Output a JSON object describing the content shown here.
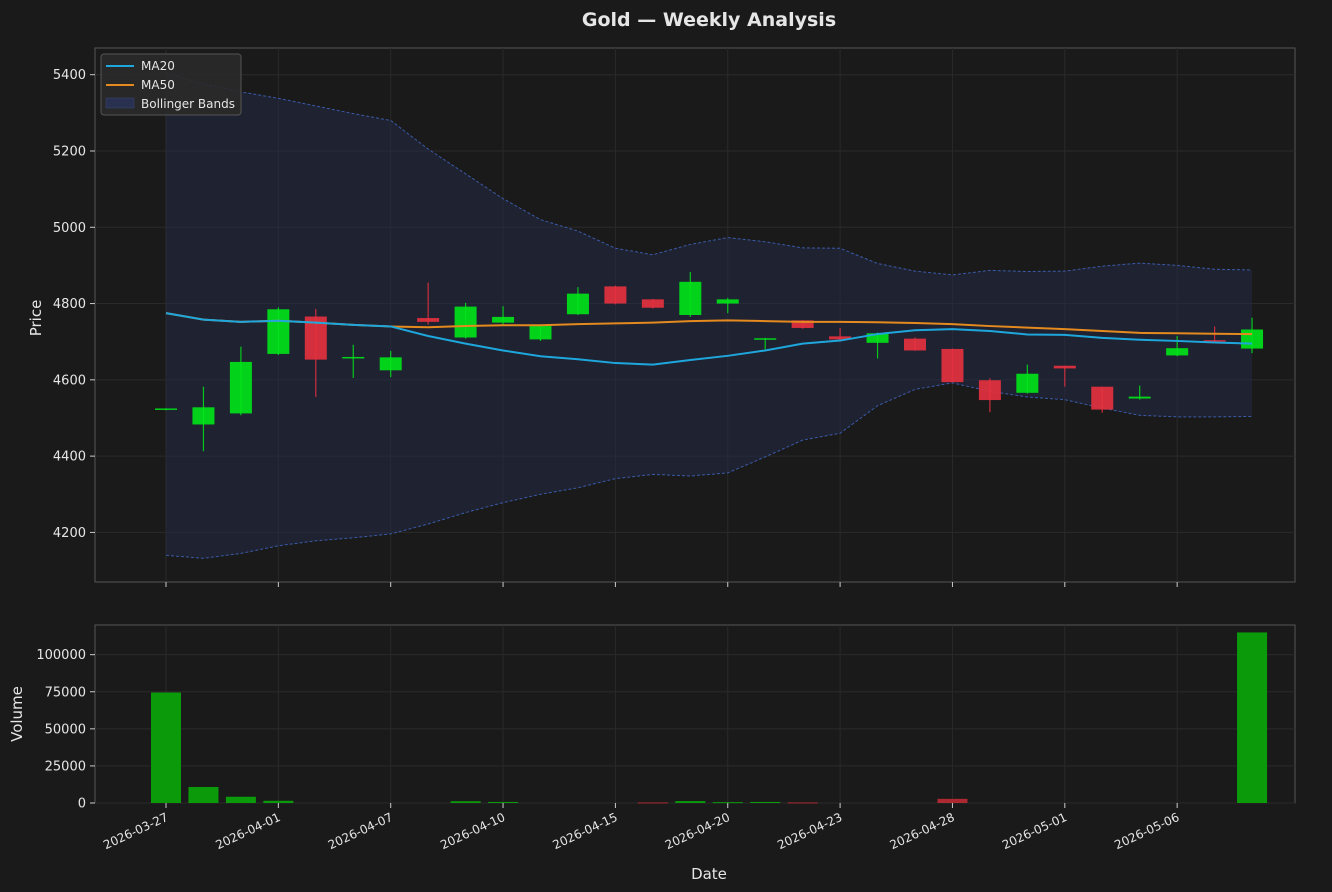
{
  "chart_data": {
    "type": "candlestick",
    "title": "Gold — Weekly Analysis",
    "xlabel": "Date",
    "colors": {
      "up": "#00e51a",
      "down": "#e8313f",
      "volume_up": "#0aa10a",
      "volume_down": "#b52a34",
      "ma20": "#1ea7dc",
      "ma50": "#e58a1e",
      "bollinger_band": "#3a5aa8",
      "background": "#1a1a1a",
      "grid": "#2a2a2a"
    },
    "x_tick_labels": [
      "2026-03-27",
      "2026-04-01",
      "2026-04-07",
      "2026-04-10",
      "2026-04-15",
      "2026-04-20",
      "2026-04-23",
      "2026-04-28",
      "2026-05-01",
      "2026-05-06"
    ],
    "price_panel": {
      "ylabel": "Price",
      "ylim": [
        4070,
        5470
      ],
      "yticks": [
        4200,
        4400,
        4600,
        4800,
        5000,
        5200,
        5400
      ],
      "legend": {
        "position": "top-left",
        "entries": [
          "MA20",
          "MA50",
          "Bollinger Bands"
        ]
      },
      "candles": [
        {
          "open": 4523,
          "high": 4525,
          "low": 4520,
          "close": 4525
        },
        {
          "open": 4483,
          "high": 4582,
          "low": 4413,
          "close": 4528
        },
        {
          "open": 4512,
          "high": 4687,
          "low": 4507,
          "close": 4647
        },
        {
          "open": 4668,
          "high": 4790,
          "low": 4665,
          "close": 4785
        },
        {
          "open": 4766,
          "high": 4786,
          "low": 4555,
          "close": 4653
        },
        {
          "open": 4658,
          "high": 4692,
          "low": 4605,
          "close": 4660
        },
        {
          "open": 4625,
          "high": 4676,
          "low": 4607,
          "close": 4659
        },
        {
          "open": 4762,
          "high": 4855,
          "low": 4745,
          "close": 4752
        },
        {
          "open": 4711,
          "high": 4802,
          "low": 4708,
          "close": 4792
        },
        {
          "open": 4750,
          "high": 4793,
          "low": 4742,
          "close": 4765
        },
        {
          "open": 4706,
          "high": 4745,
          "low": 4702,
          "close": 4741
        },
        {
          "open": 4772,
          "high": 4843,
          "low": 4770,
          "close": 4826
        },
        {
          "open": 4845,
          "high": 4847,
          "low": 4798,
          "close": 4800
        },
        {
          "open": 4811,
          "high": 4812,
          "low": 4787,
          "close": 4789
        },
        {
          "open": 4770,
          "high": 4883,
          "low": 4765,
          "close": 4857
        },
        {
          "open": 4800,
          "high": 4815,
          "low": 4775,
          "close": 4811
        },
        {
          "open": 4709,
          "high": 4710,
          "low": 4680,
          "close": 4709
        },
        {
          "open": 4756,
          "high": 4757,
          "low": 4734,
          "close": 4736
        },
        {
          "open": 4714,
          "high": 4736,
          "low": 4700,
          "close": 4706
        },
        {
          "open": 4697,
          "high": 4724,
          "low": 4656,
          "close": 4722
        },
        {
          "open": 4708,
          "high": 4711,
          "low": 4676,
          "close": 4677
        },
        {
          "open": 4681,
          "high": 4682,
          "low": 4594,
          "close": 4594
        },
        {
          "open": 4599,
          "high": 4604,
          "low": 4515,
          "close": 4547
        },
        {
          "open": 4566,
          "high": 4640,
          "low": 4564,
          "close": 4616
        },
        {
          "open": 4637,
          "high": 4637,
          "low": 4582,
          "close": 4630
        },
        {
          "open": 4582,
          "high": 4582,
          "low": 4514,
          "close": 4522
        },
        {
          "open": 4551,
          "high": 4585,
          "low": 4548,
          "close": 4556
        },
        {
          "open": 4664,
          "high": 4715,
          "low": 4662,
          "close": 4683
        },
        {
          "open": 4704,
          "high": 4740,
          "low": 4698,
          "close": 4700
        },
        {
          "open": 4682,
          "high": 4763,
          "low": 4670,
          "close": 4732
        }
      ],
      "ma20": [
        4775,
        4758,
        4752,
        4755,
        4750,
        4744,
        4740,
        4715,
        4695,
        4677,
        4662,
        4654,
        4644,
        4640,
        4652,
        4663,
        4677,
        4695,
        4703,
        4720,
        4730,
        4733,
        4728,
        4719,
        4718,
        4710,
        4705,
        4702,
        4698,
        4695
      ],
      "ma50": [
        4775,
        4758,
        4752,
        4755,
        4750,
        4744,
        4740,
        4738,
        4741,
        4743,
        4743,
        4746,
        4748,
        4750,
        4754,
        4756,
        4754,
        4752,
        4752,
        4751,
        4749,
        4746,
        4741,
        4737,
        4733,
        4728,
        4723,
        4722,
        4721,
        4720
      ],
      "bollinger_upper": [
        5405,
        5375,
        5355,
        5338,
        5318,
        5298,
        5280,
        5205,
        5140,
        5075,
        5020,
        4990,
        4945,
        4928,
        4955,
        4973,
        4962,
        4946,
        4945,
        4905,
        4885,
        4875,
        4887,
        4884,
        4885,
        4898,
        4906,
        4900,
        4890,
        4888
      ],
      "bollinger_lower": [
        4140,
        4132,
        4145,
        4165,
        4178,
        4186,
        4196,
        4222,
        4252,
        4278,
        4300,
        4317,
        4341,
        4352,
        4348,
        4356,
        4398,
        4442,
        4460,
        4532,
        4575,
        4592,
        4570,
        4555,
        4548,
        4526,
        4507,
        4503,
        4503,
        4504
      ]
    },
    "volume_panel": {
      "ylabel": "Volume",
      "ylim": [
        0,
        120000
      ],
      "yticks": [
        0,
        25000,
        50000,
        75000,
        100000
      ],
      "values": [
        74500,
        10800,
        4200,
        1500,
        0,
        0,
        0,
        0,
        1200,
        700,
        0,
        0,
        0,
        400,
        1300,
        600,
        700,
        400,
        0,
        0,
        0,
        2800,
        0,
        0,
        0,
        0,
        0,
        0,
        0,
        115000
      ],
      "directions": [
        "up",
        "up",
        "up",
        "up",
        "up",
        "up",
        "up",
        "up",
        "up",
        "up",
        "up",
        "up",
        "up",
        "down",
        "up",
        "up",
        "up",
        "down",
        "up",
        "up",
        "up",
        "down",
        "up",
        "up",
        "up",
        "up",
        "up",
        "up",
        "up",
        "up"
      ]
    }
  }
}
